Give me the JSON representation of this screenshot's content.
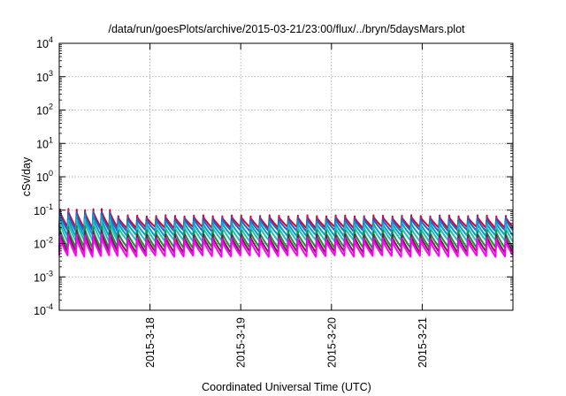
{
  "chart_data": {
    "type": "line",
    "title": "/data/run/goesPlots/archive/2015-03-21/23:00/flux/../bryn/5daysMars.plot",
    "xlabel": "Coordinated Universal Time (UTC)",
    "ylabel": "cSv/day",
    "y_scale": "log",
    "ylim": [
      0.0001,
      10000
    ],
    "y_ticks": [
      {
        "value": 0.0001,
        "base": "10",
        "exp": "-4"
      },
      {
        "value": 0.001,
        "base": "10",
        "exp": "-3"
      },
      {
        "value": 0.01,
        "base": "10",
        "exp": "-2"
      },
      {
        "value": 0.1,
        "base": "10",
        "exp": "-1"
      },
      {
        "value": 1,
        "base": "10",
        "exp": "0"
      },
      {
        "value": 10,
        "base": "10",
        "exp": "1"
      },
      {
        "value": 100,
        "base": "10",
        "exp": "2"
      },
      {
        "value": 1000,
        "base": "10",
        "exp": "3"
      },
      {
        "value": 10000,
        "base": "10",
        "exp": "4"
      }
    ],
    "x_range": [
      "2015-03-17T00:00",
      "2015-03-22T00:00"
    ],
    "x_ticks": [
      {
        "date": "2015-03-18T00:00",
        "label": "2015-3-18"
      },
      {
        "date": "2015-03-19T00:00",
        "label": "2015-3-19"
      },
      {
        "date": "2015-03-20T00:00",
        "label": "2015-3-20"
      },
      {
        "date": "2015-03-21T00:00",
        "label": "2015-3-21"
      }
    ],
    "grid": true,
    "pattern": {
      "description": "sawtooth: sharp rise at each cycle start, exponential decay until next cycle",
      "first_cycle_start": "2015-03-17T00:00",
      "cycle_hours_early": 2.2,
      "cycle_hours_late": 2.5,
      "transition_date": "2015-03-17T14:00"
    },
    "series": [
      {
        "color": "#e0002a",
        "peak_early": 0.105,
        "peak_late": 0.068,
        "trough": 0.03
      },
      {
        "color": "#1f5fd6",
        "peak_early": 0.088,
        "peak_late": 0.058,
        "trough": 0.024
      },
      {
        "color": "#00a0c8",
        "peak_early": 0.068,
        "peak_late": 0.045,
        "trough": 0.017
      },
      {
        "color": "#20c0c0",
        "peak_early": 0.05,
        "peak_late": 0.034,
        "trough": 0.012
      },
      {
        "color": "#1a8f3a",
        "peak_early": 0.032,
        "peak_late": 0.024,
        "trough": 0.0075
      },
      {
        "color": "#7a1a4a",
        "peak_early": 0.024,
        "peak_late": 0.018,
        "trough": 0.0055
      },
      {
        "color": "#ff00ff",
        "peak_early": 0.018,
        "peak_late": 0.014,
        "trough": 0.0042
      }
    ]
  }
}
